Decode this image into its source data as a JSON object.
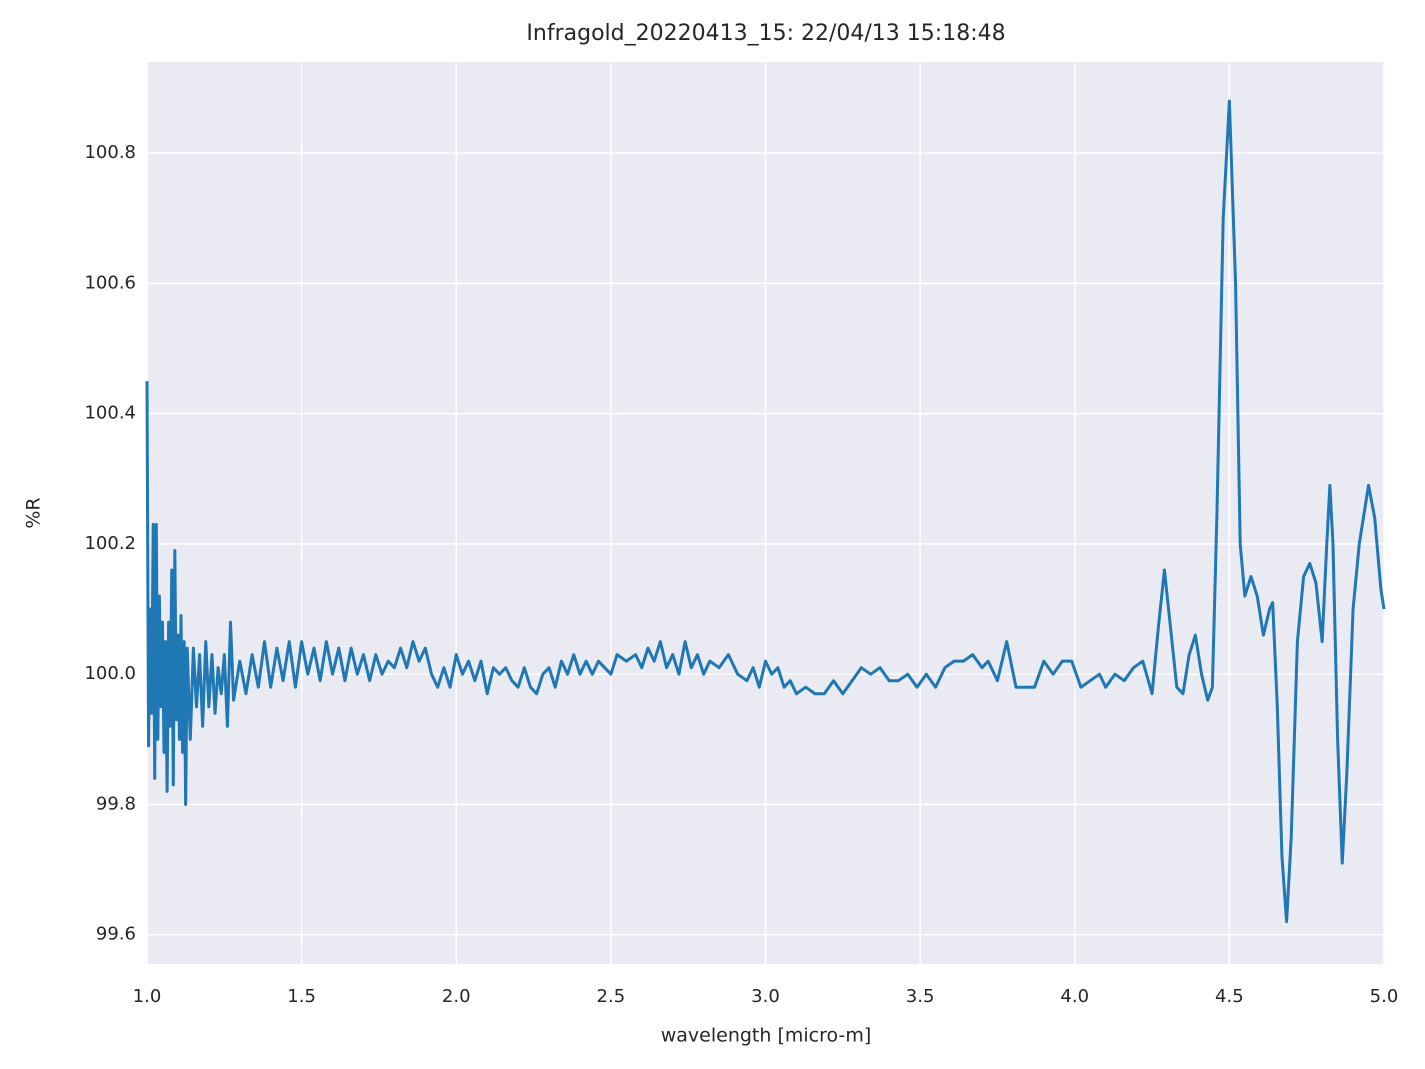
{
  "chart_data": {
    "type": "line",
    "title": "Infragold_20220413_15:  22/04/13 15:18:48",
    "xlabel": "wavelength [micro-m]",
    "ylabel": "%R",
    "color": "#1f77b4",
    "grid": true,
    "xlim": [
      1,
      5
    ],
    "ylim": [
      99.555,
      100.94
    ],
    "xticks": [
      {
        "value": 1,
        "label": "1.0"
      },
      1.5,
      {
        "value": 2,
        "label": "2.0"
      },
      2.5,
      {
        "value": 3,
        "label": "3.0"
      },
      3.5,
      {
        "value": 4,
        "label": "4.0"
      },
      4.5,
      {
        "value": 5,
        "label": "5.0"
      }
    ],
    "yticks": [
      99.6,
      99.8,
      {
        "value": 100,
        "label": "100.0"
      },
      100.2,
      100.4,
      100.6,
      100.8
    ],
    "x": [
      1.0,
      1.005,
      1.01,
      1.015,
      1.02,
      1.025,
      1.03,
      1.035,
      1.04,
      1.045,
      1.05,
      1.055,
      1.06,
      1.065,
      1.07,
      1.075,
      1.08,
      1.085,
      1.09,
      1.095,
      1.1,
      1.105,
      1.11,
      1.115,
      1.12,
      1.125,
      1.13,
      1.14,
      1.15,
      1.16,
      1.17,
      1.18,
      1.19,
      1.2,
      1.21,
      1.22,
      1.23,
      1.24,
      1.25,
      1.26,
      1.27,
      1.28,
      1.3,
      1.32,
      1.34,
      1.36,
      1.38,
      1.4,
      1.42,
      1.44,
      1.46,
      1.48,
      1.5,
      1.52,
      1.54,
      1.56,
      1.58,
      1.6,
      1.62,
      1.64,
      1.66,
      1.68,
      1.7,
      1.72,
      1.74,
      1.76,
      1.78,
      1.8,
      1.82,
      1.84,
      1.86,
      1.88,
      1.9,
      1.92,
      1.94,
      1.96,
      1.98,
      2.0,
      2.02,
      2.04,
      2.06,
      2.08,
      2.1,
      2.12,
      2.14,
      2.16,
      2.18,
      2.2,
      2.22,
      2.24,
      2.26,
      2.28,
      2.3,
      2.32,
      2.34,
      2.36,
      2.38,
      2.4,
      2.42,
      2.44,
      2.46,
      2.48,
      2.5,
      2.52,
      2.55,
      2.58,
      2.6,
      2.62,
      2.64,
      2.66,
      2.68,
      2.7,
      2.72,
      2.74,
      2.76,
      2.78,
      2.8,
      2.82,
      2.85,
      2.88,
      2.91,
      2.94,
      2.96,
      2.98,
      3.0,
      3.02,
      3.04,
      3.06,
      3.08,
      3.1,
      3.13,
      3.16,
      3.19,
      3.22,
      3.25,
      3.28,
      3.31,
      3.34,
      3.37,
      3.4,
      3.43,
      3.46,
      3.49,
      3.52,
      3.55,
      3.58,
      3.61,
      3.64,
      3.67,
      3.7,
      3.72,
      3.75,
      3.78,
      3.81,
      3.84,
      3.87,
      3.9,
      3.93,
      3.96,
      3.99,
      4.02,
      4.05,
      4.08,
      4.1,
      4.13,
      4.16,
      4.19,
      4.22,
      4.25,
      4.27,
      4.29,
      4.31,
      4.33,
      4.35,
      4.37,
      4.39,
      4.41,
      4.43,
      4.445,
      4.46,
      4.48,
      4.5,
      4.52,
      4.535,
      4.55,
      4.57,
      4.59,
      4.61,
      4.63,
      4.64,
      4.655,
      4.67,
      4.685,
      4.7,
      4.72,
      4.74,
      4.76,
      4.78,
      4.8,
      4.815,
      4.825,
      4.835,
      4.85,
      4.865,
      4.88,
      4.9,
      4.92,
      4.95,
      4.97,
      4.99,
      5.0
    ],
    "values": [
      100.45,
      99.89,
      100.1,
      99.94,
      100.23,
      99.84,
      100.23,
      99.9,
      100.12,
      99.95,
      100.08,
      99.88,
      100.05,
      99.82,
      100.08,
      99.92,
      100.16,
      99.83,
      100.19,
      99.93,
      100.06,
      99.9,
      100.09,
      99.88,
      100.05,
      99.8,
      100.04,
      99.9,
      100.04,
      99.95,
      100.03,
      99.92,
      100.05,
      99.95,
      100.03,
      99.94,
      100.01,
      99.97,
      100.03,
      99.92,
      100.08,
      99.96,
      100.02,
      99.97,
      100.03,
      99.98,
      100.05,
      99.98,
      100.04,
      99.99,
      100.05,
      99.98,
      100.05,
      100.0,
      100.04,
      99.99,
      100.05,
      100.0,
      100.04,
      99.99,
      100.04,
      100.0,
      100.03,
      99.99,
      100.03,
      100.0,
      100.02,
      100.01,
      100.04,
      100.01,
      100.05,
      100.02,
      100.04,
      100.0,
      99.98,
      100.01,
      99.98,
      100.03,
      100.0,
      100.02,
      99.99,
      100.02,
      99.97,
      100.01,
      100.0,
      100.01,
      99.99,
      99.98,
      100.01,
      99.98,
      99.97,
      100.0,
      100.01,
      99.98,
      100.02,
      100.0,
      100.03,
      100.0,
      100.02,
      100.0,
      100.02,
      100.01,
      100.0,
      100.03,
      100.02,
      100.03,
      100.01,
      100.04,
      100.02,
      100.05,
      100.01,
      100.03,
      100.0,
      100.05,
      100.01,
      100.03,
      100.0,
      100.02,
      100.01,
      100.03,
      100.0,
      99.99,
      100.01,
      99.98,
      100.02,
      100.0,
      100.01,
      99.98,
      99.99,
      99.97,
      99.98,
      99.97,
      99.97,
      99.99,
      99.97,
      99.99,
      100.01,
      100.0,
      100.01,
      99.99,
      99.99,
      100.0,
      99.98,
      100.0,
      99.98,
      100.01,
      100.02,
      100.02,
      100.03,
      100.01,
      100.02,
      99.99,
      100.05,
      99.98,
      99.98,
      99.98,
      100.02,
      100.0,
      100.02,
      100.02,
      99.98,
      99.99,
      100.0,
      99.98,
      100.0,
      99.99,
      100.01,
      100.02,
      99.97,
      100.07,
      100.16,
      100.07,
      99.98,
      99.97,
      100.03,
      100.06,
      100.0,
      99.96,
      99.98,
      100.25,
      100.7,
      100.88,
      100.6,
      100.2,
      100.12,
      100.15,
      100.12,
      100.06,
      100.1,
      100.11,
      99.95,
      99.72,
      99.62,
      99.75,
      100.05,
      100.15,
      100.17,
      100.14,
      100.05,
      100.2,
      100.29,
      100.2,
      99.9,
      99.71,
      99.85,
      100.1,
      100.2,
      100.29,
      100.24,
      100.13,
      100.1
    ]
  }
}
